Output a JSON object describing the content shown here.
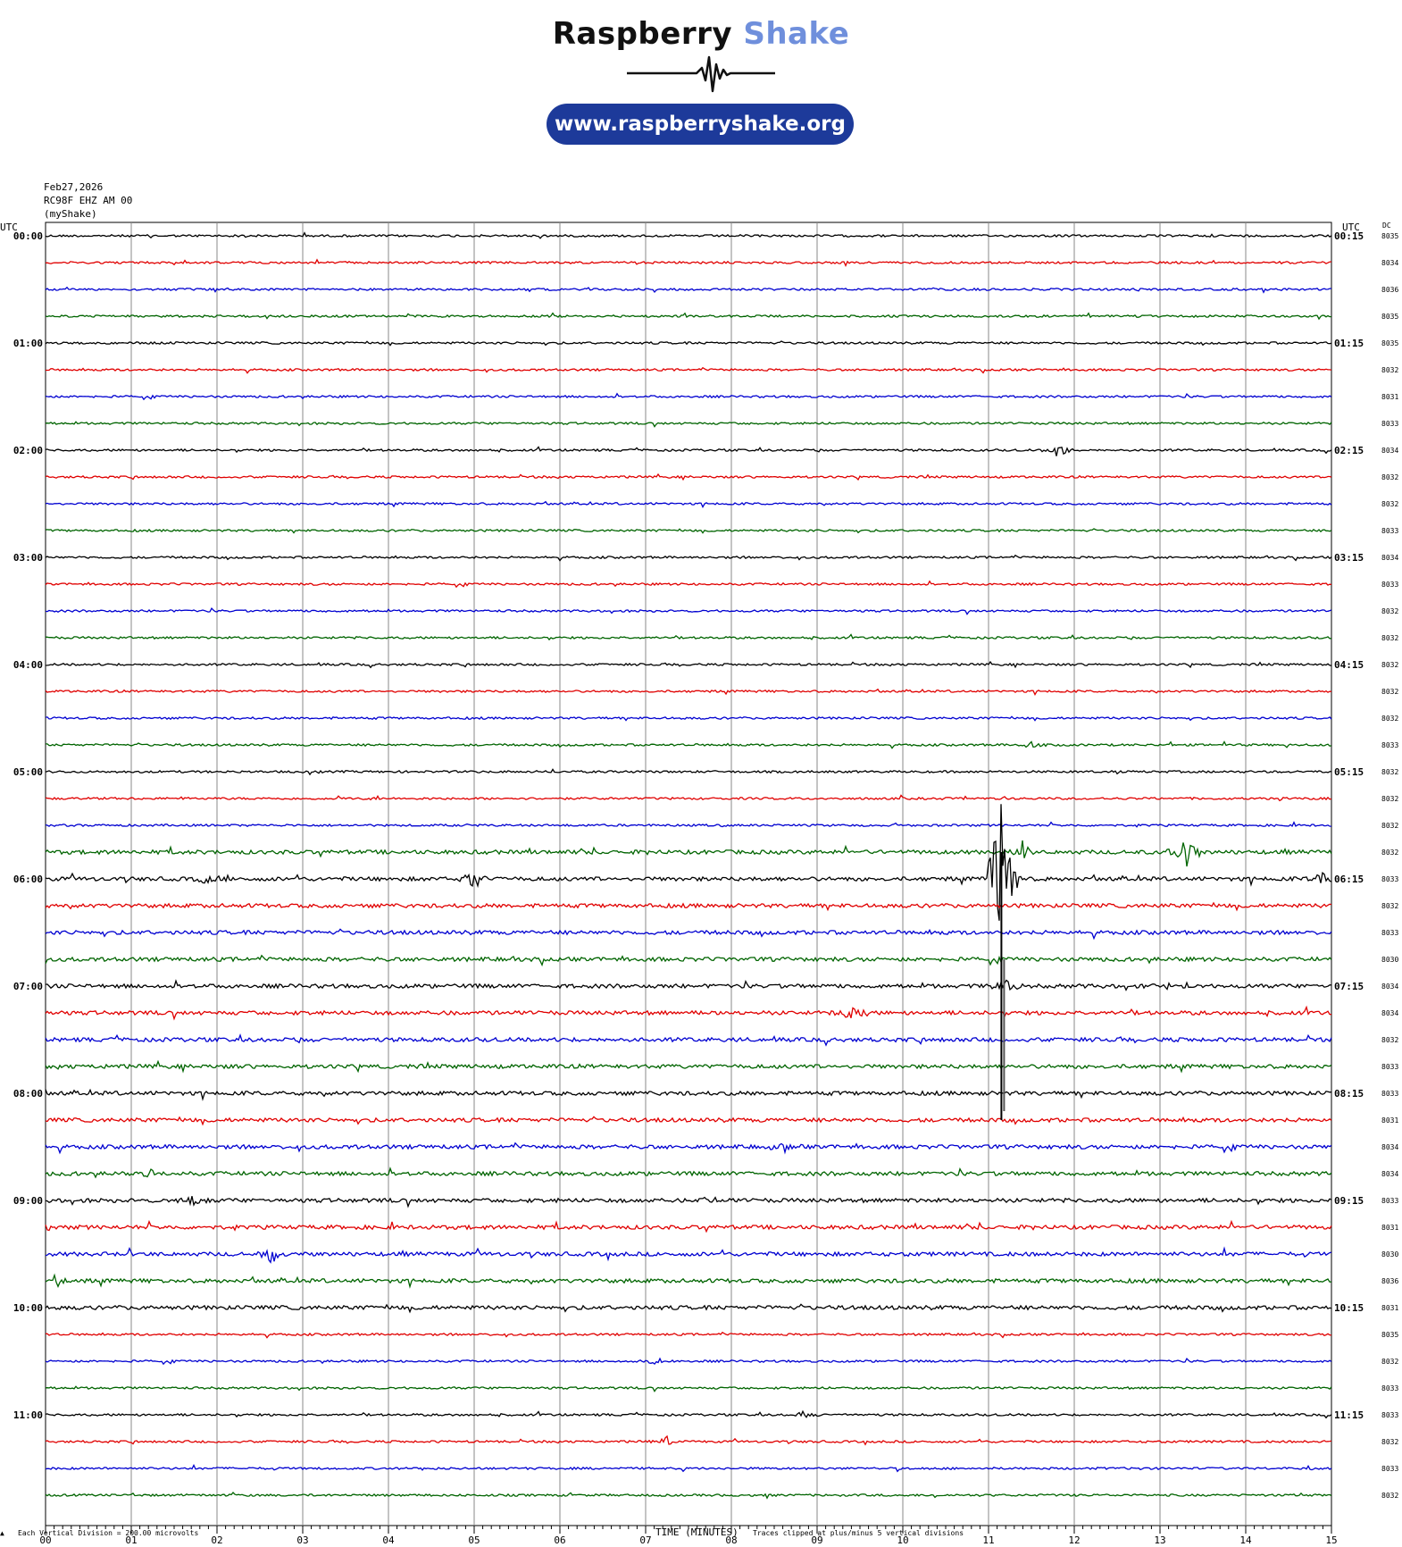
{
  "header": {
    "brand_part1": "Raspberry",
    "brand_part2": "Shake",
    "url": "www.raspberryshake.org",
    "date": "Feb27,2026",
    "station": "RC98F EHZ AM 00",
    "source": "(myShake)"
  },
  "colors": {
    "brand_blue": "#6f8fdc",
    "pill": "#1d3a9a",
    "trace_cycle": [
      "#000000",
      "#e00000",
      "#0000d0",
      "#006400"
    ]
  },
  "chart_data": {
    "type": "line",
    "title": "",
    "xlabel": "TIME (MINUTES)",
    "ylabel": "",
    "xlim": [
      0,
      15
    ],
    "x_ticks": [
      "00",
      "01",
      "02",
      "03",
      "04",
      "05",
      "06",
      "07",
      "08",
      "09",
      "10",
      "11",
      "12",
      "13",
      "14",
      "15"
    ],
    "left_axis_label": "UTC",
    "right_axis_label": "UTC",
    "dc_label": "DC",
    "left_hour_labels": [
      "00:00",
      "01:00",
      "02:00",
      "03:00",
      "04:00",
      "05:00",
      "06:00",
      "07:00",
      "08:00",
      "09:00",
      "10:00",
      "11:00"
    ],
    "right_hour_labels": [
      "00:15",
      "01:15",
      "02:15",
      "03:15",
      "04:15",
      "05:15",
      "06:15",
      "07:15",
      "08:15",
      "09:15",
      "10:15",
      "11:15"
    ],
    "dc_offsets": [
      "8035",
      "8034",
      "8036",
      "8035",
      "8035",
      "8032",
      "8031",
      "8033",
      "8034",
      "8032",
      "8032",
      "8033",
      "8034",
      "8033",
      "8032",
      "8032",
      "8032",
      "8032",
      "8032",
      "8033",
      "8032",
      "8032",
      "8032",
      "8032",
      "8033",
      "8032",
      "8033",
      "8030",
      "8034",
      "8034",
      "8032",
      "8033",
      "8033",
      "8031",
      "8034",
      "8034",
      "8033",
      "8031",
      "8030",
      "8036",
      "8031",
      "8035",
      "8032",
      "8033",
      "8033",
      "8032",
      "8033",
      "8032"
    ],
    "grid": true,
    "events": [
      {
        "row": 8,
        "minute": 11.8,
        "amp": 10
      },
      {
        "row": 19,
        "minute": 11.5,
        "amp": 6
      },
      {
        "row": 23,
        "minute": 13.3,
        "amp": 22
      },
      {
        "row": 23,
        "minute": 11.4,
        "amp": 8
      },
      {
        "row": 24,
        "minute": 5.0,
        "amp": 14
      },
      {
        "row": 24,
        "minute": 1.9,
        "amp": 6
      },
      {
        "row": 24,
        "minute": 14.9,
        "amp": 10
      },
      {
        "row": 24,
        "minute": 11.15,
        "amp": 120
      },
      {
        "row": 28,
        "minute": 11.2,
        "amp": 12
      },
      {
        "row": 28,
        "minute": 13.1,
        "amp": 5
      },
      {
        "row": 29,
        "minute": 9.4,
        "amp": 8
      },
      {
        "row": 29,
        "minute": 7.6,
        "amp": 5
      },
      {
        "row": 34,
        "minute": 8.6,
        "amp": 6
      },
      {
        "row": 35,
        "minute": 1.2,
        "amp": 7
      },
      {
        "row": 36,
        "minute": 1.7,
        "amp": 7
      },
      {
        "row": 36,
        "minute": 7.7,
        "amp": 7
      },
      {
        "row": 37,
        "minute": 0.0,
        "amp": 7
      },
      {
        "row": 38,
        "minute": 2.65,
        "amp": 11
      },
      {
        "row": 39,
        "minute": 0.15,
        "amp": 8
      },
      {
        "row": 42,
        "minute": 7.1,
        "amp": 5
      },
      {
        "row": 44,
        "minute": 8.85,
        "amp": 5
      },
      {
        "row": 45,
        "minute": 7.25,
        "amp": 7
      }
    ],
    "footer_scale": "Each Vertical Division =  200.00 microvolts",
    "footer_clip": "Traces clipped at plus/minus 5 vertical divisions"
  }
}
